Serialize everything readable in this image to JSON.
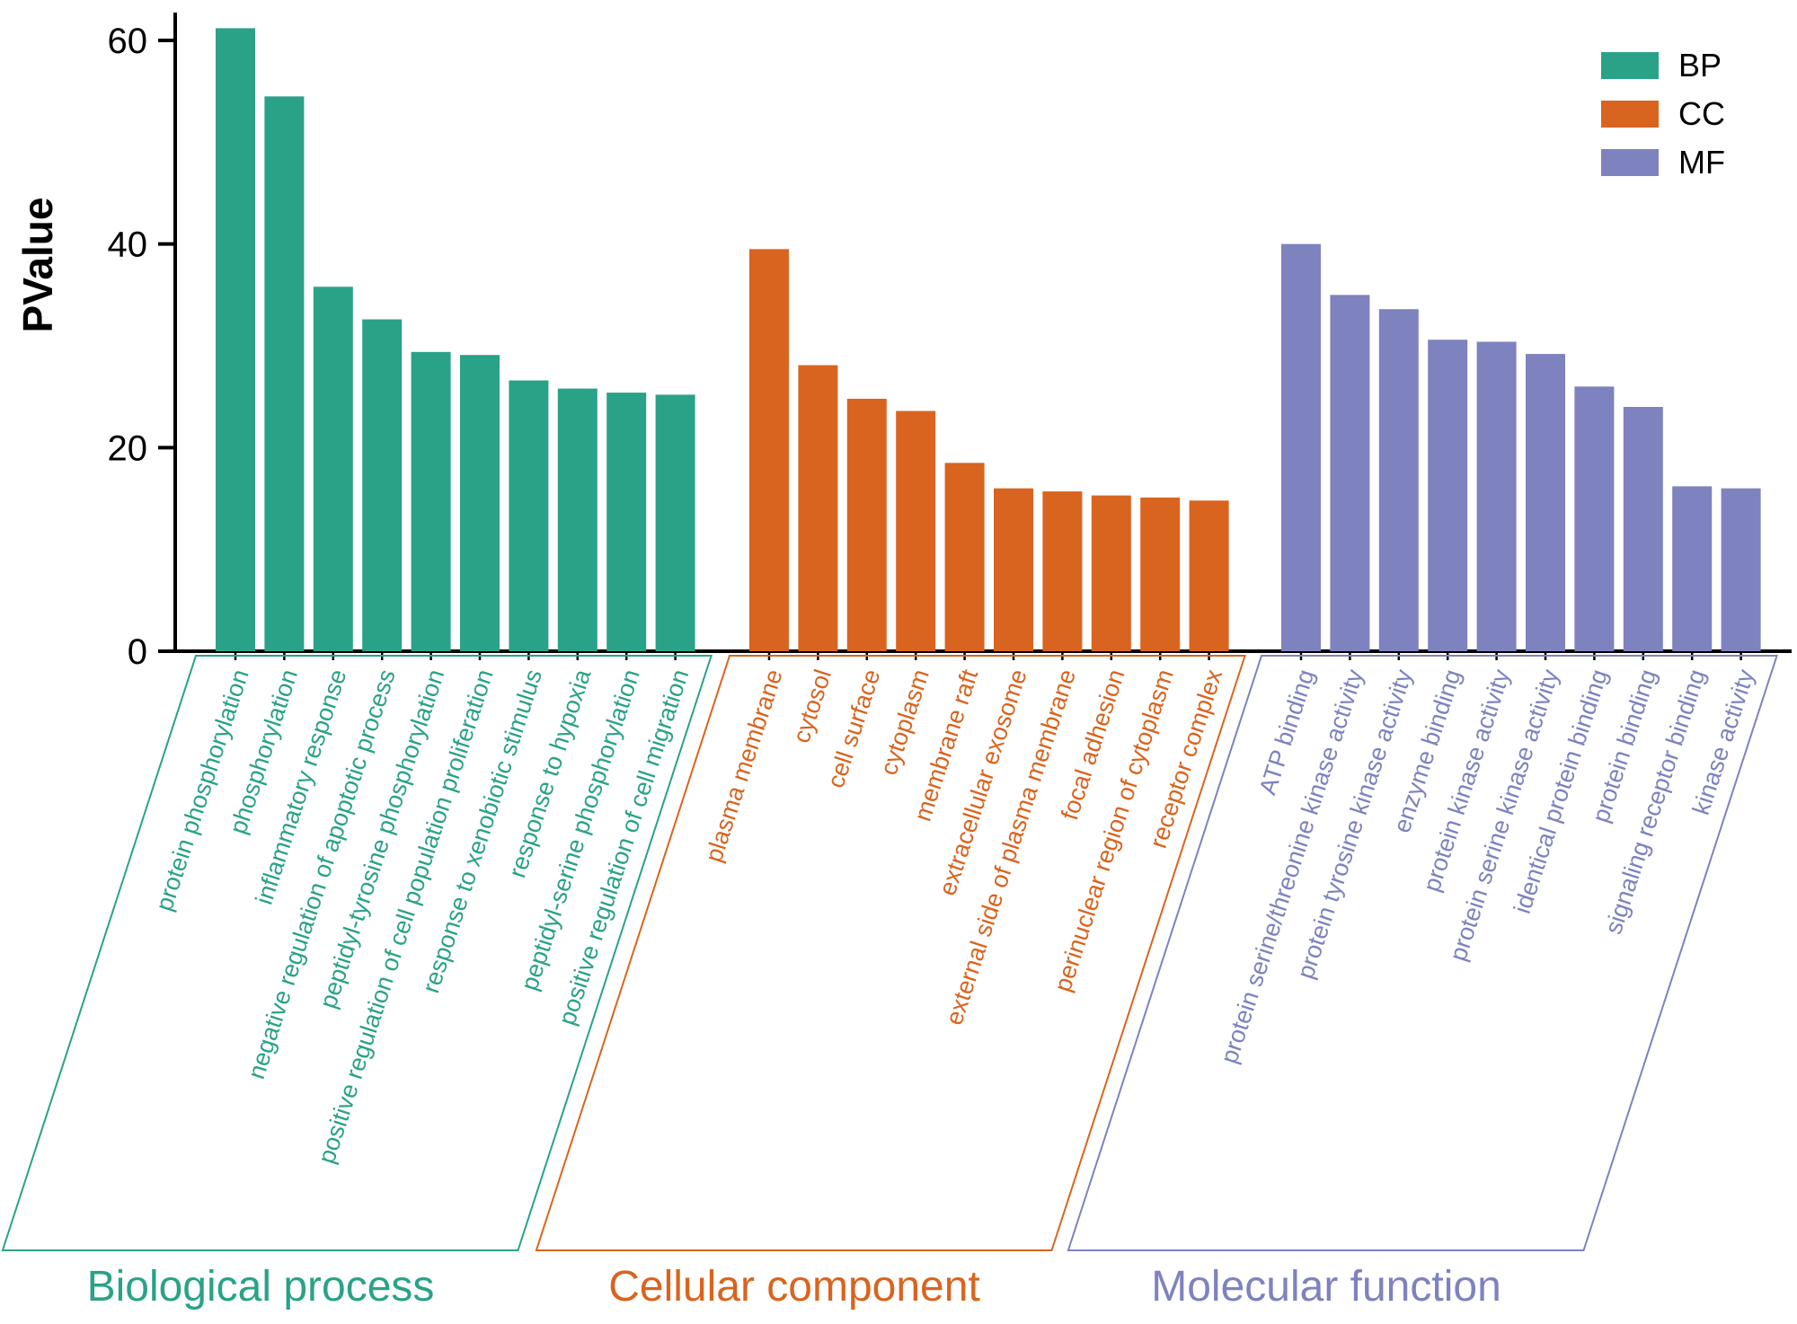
{
  "chart_data": {
    "type": "bar",
    "title": "",
    "ylabel": "PValue",
    "ylim": [
      0,
      62
    ],
    "yticks": [
      0,
      20,
      40,
      60
    ],
    "grid": false,
    "legend_position": "top-right",
    "groups": [
      {
        "legend": "BP",
        "name": "Biological process",
        "color": "#2aa287",
        "categories": [
          "protein phosphorylation",
          "phosphorylation",
          "inflammatory response",
          "negative regulation of apoptotic process",
          "peptidyl-tyrosine phosphorylation",
          "positive regulation of cell population proliferation",
          "response to xenobiotic stimulus",
          "response to hypoxia",
          "peptidyl-serine phosphorylation",
          "positive regulation of cell migration"
        ],
        "values": [
          61.2,
          54.5,
          35.8,
          32.6,
          29.4,
          29.1,
          26.6,
          25.8,
          25.4,
          25.2
        ]
      },
      {
        "legend": "CC",
        "name": "Cellular component",
        "color": "#d9641f",
        "categories": [
          "plasma membrane",
          "cytosol",
          "cell surface",
          "cytoplasm",
          "membrane raft",
          "extracellular exosome",
          "external side of plasma membrane",
          "focal adhesion",
          "perinuclear region of cytoplasm",
          "receptor complex"
        ],
        "values": [
          39.5,
          28.1,
          24.8,
          23.6,
          18.5,
          16.0,
          15.7,
          15.3,
          15.1,
          14.8
        ]
      },
      {
        "legend": "MF",
        "name": "Molecular function",
        "color": "#7e82bf",
        "categories": [
          "ATP binding",
          "protein serine/threonine kinase activity",
          "protein tyrosine kinase activity",
          "enzyme binding",
          "protein kinase activity",
          "protein serine kinase activity",
          "identical protein binding",
          "protein binding",
          "signaling receptor binding",
          "kinase activity"
        ],
        "values": [
          40.0,
          35.0,
          33.6,
          30.6,
          30.4,
          29.2,
          26.0,
          24.0,
          16.2,
          16.0
        ]
      }
    ]
  }
}
